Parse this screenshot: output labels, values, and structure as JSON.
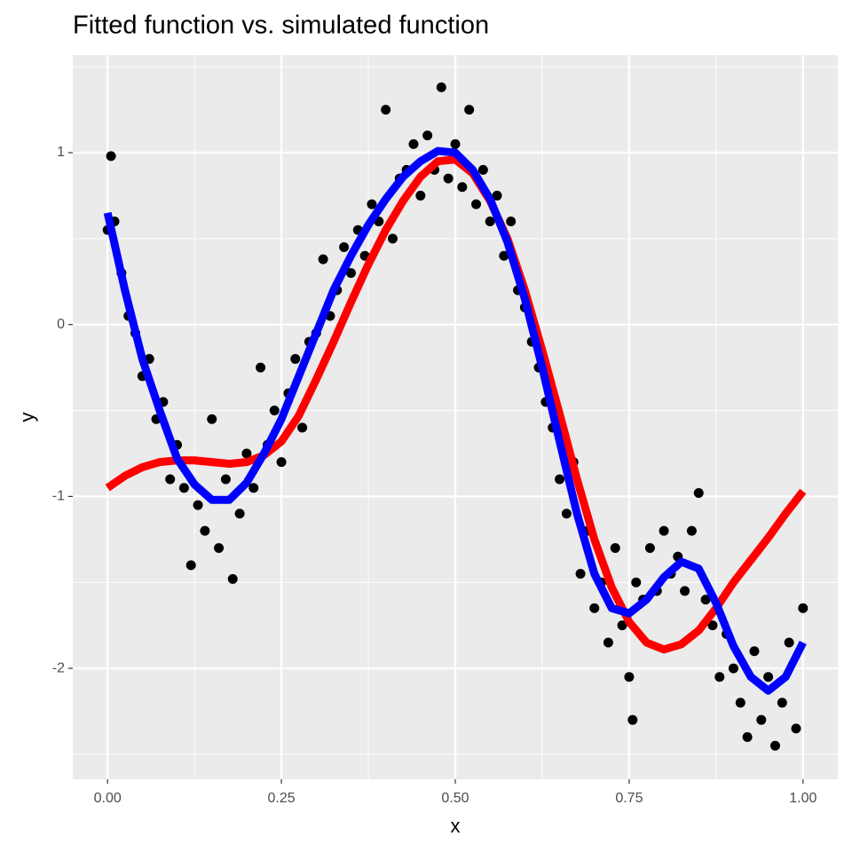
{
  "chart_data": {
    "type": "scatter",
    "title": "Fitted function vs. simulated function",
    "x_label": "x",
    "y_label": "y",
    "xlim": [
      -0.05,
      1.05
    ],
    "ylim": [
      -2.645,
      1.568
    ],
    "xticks": [
      {
        "value": 0,
        "label": "0.00"
      },
      {
        "value": 0.25,
        "label": "0.25"
      },
      {
        "value": 0.5,
        "label": "0.50"
      },
      {
        "value": 0.75,
        "label": "0.75"
      },
      {
        "value": 1,
        "label": "1.00"
      }
    ],
    "yticks": [
      -2,
      -1,
      0,
      1
    ],
    "grid": true,
    "series": [
      {
        "mode": "points",
        "color": "#000000",
        "x": [
          0,
          0.005,
          0.01,
          0.02,
          0.03,
          0.04,
          0.05,
          0.06,
          0.07,
          0.08,
          0.09,
          0.1,
          0.11,
          0.12,
          0.13,
          0.14,
          0.15,
          0.16,
          0.17,
          0.18,
          0.19,
          0.2,
          0.21,
          0.22,
          0.23,
          0.24,
          0.25,
          0.26,
          0.27,
          0.28,
          0.29,
          0.3,
          0.31,
          0.32,
          0.33,
          0.34,
          0.35,
          0.36,
          0.37,
          0.38,
          0.39,
          0.4,
          0.41,
          0.42,
          0.43,
          0.44,
          0.45,
          0.46,
          0.47,
          0.48,
          0.49,
          0.5,
          0.51,
          0.52,
          0.53,
          0.54,
          0.55,
          0.56,
          0.57,
          0.58,
          0.59,
          0.6,
          0.61,
          0.62,
          0.63,
          0.64,
          0.65,
          0.66,
          0.67,
          0.68,
          0.69,
          0.7,
          0.71,
          0.72,
          0.73,
          0.74,
          0.75,
          0.755,
          0.76,
          0.77,
          0.78,
          0.79,
          0.8,
          0.81,
          0.82,
          0.83,
          0.84,
          0.85,
          0.86,
          0.87,
          0.88,
          0.89,
          0.9,
          0.91,
          0.92,
          0.93,
          0.94,
          0.95,
          0.96,
          0.97,
          0.98,
          0.99,
          1
        ],
        "values": [
          0.55,
          0.98,
          0.6,
          0.3,
          0.05,
          -0.05,
          -0.3,
          -0.2,
          -0.55,
          -0.45,
          -0.9,
          -0.7,
          -0.95,
          -1.4,
          -1.05,
          -1.2,
          -0.55,
          -1.3,
          -0.9,
          -1.48,
          -1.1,
          -0.75,
          -0.95,
          -0.25,
          -0.7,
          -0.5,
          -0.8,
          -0.4,
          -0.2,
          -0.6,
          -0.1,
          -0.05,
          0.38,
          0.05,
          0.2,
          0.45,
          0.3,
          0.55,
          0.4,
          0.7,
          0.6,
          1.25,
          0.5,
          0.85,
          0.9,
          1.05,
          0.75,
          1.1,
          0.9,
          1.38,
          0.85,
          1.05,
          0.8,
          1.25,
          0.7,
          0.9,
          0.6,
          0.75,
          0.4,
          0.6,
          0.2,
          0.1,
          -0.1,
          -0.25,
          -0.45,
          -0.6,
          -0.9,
          -1.1,
          -0.8,
          -1.45,
          -1.2,
          -1.65,
          -1.5,
          -1.85,
          -1.3,
          -1.75,
          -2.05,
          -2.3,
          -1.5,
          -1.6,
          -1.3,
          -1.55,
          -1.2,
          -1.45,
          -1.35,
          -1.55,
          -1.2,
          -0.98,
          -1.6,
          -1.75,
          -2.05,
          -1.8,
          -2,
          -2.2,
          -2.4,
          -1.9,
          -2.3,
          -2.05,
          -2.45,
          -2.2,
          -1.85,
          -2.35,
          -1.65
        ]
      },
      {
        "mode": "line",
        "color": "#ff0000",
        "x": [
          0,
          0.025,
          0.05,
          0.075,
          0.1,
          0.125,
          0.15,
          0.175,
          0.2,
          0.225,
          0.25,
          0.275,
          0.3,
          0.325,
          0.35,
          0.375,
          0.4,
          0.425,
          0.45,
          0.475,
          0.5,
          0.525,
          0.55,
          0.575,
          0.6,
          0.625,
          0.65,
          0.675,
          0.7,
          0.725,
          0.75,
          0.775,
          0.8,
          0.825,
          0.85,
          0.875,
          0.9,
          0.925,
          0.95,
          0.975,
          1
        ],
        "values": [
          -0.95,
          -0.88,
          -0.83,
          -0.8,
          -0.79,
          -0.79,
          -0.8,
          -0.81,
          -0.8,
          -0.76,
          -0.68,
          -0.53,
          -0.32,
          -0.1,
          0.13,
          0.35,
          0.55,
          0.72,
          0.86,
          0.95,
          0.96,
          0.88,
          0.72,
          0.5,
          0.2,
          -0.15,
          -0.52,
          -0.9,
          -1.25,
          -1.53,
          -1.73,
          -1.85,
          -1.89,
          -1.86,
          -1.78,
          -1.65,
          -1.5,
          -1.37,
          -1.24,
          -1.1,
          -0.97
        ]
      },
      {
        "mode": "line",
        "color": "#0000ff",
        "x": [
          0,
          0.025,
          0.05,
          0.075,
          0.1,
          0.125,
          0.15,
          0.175,
          0.2,
          0.225,
          0.25,
          0.275,
          0.3,
          0.325,
          0.35,
          0.375,
          0.4,
          0.425,
          0.45,
          0.475,
          0.5,
          0.525,
          0.55,
          0.575,
          0.6,
          0.625,
          0.65,
          0.675,
          0.7,
          0.725,
          0.75,
          0.775,
          0.8,
          0.825,
          0.85,
          0.875,
          0.9,
          0.925,
          0.95,
          0.975,
          1
        ],
        "values": [
          0.65,
          0.2,
          -0.2,
          -0.5,
          -0.78,
          -0.93,
          -1.02,
          -1.02,
          -0.92,
          -0.75,
          -0.55,
          -0.3,
          -0.05,
          0.2,
          0.4,
          0.58,
          0.73,
          0.86,
          0.95,
          1.01,
          1,
          0.9,
          0.73,
          0.48,
          0.15,
          -0.25,
          -0.68,
          -1.1,
          -1.45,
          -1.65,
          -1.68,
          -1.6,
          -1.47,
          -1.38,
          -1.42,
          -1.62,
          -1.87,
          -2.05,
          -2.13,
          -2.05,
          -1.85
        ]
      }
    ]
  }
}
